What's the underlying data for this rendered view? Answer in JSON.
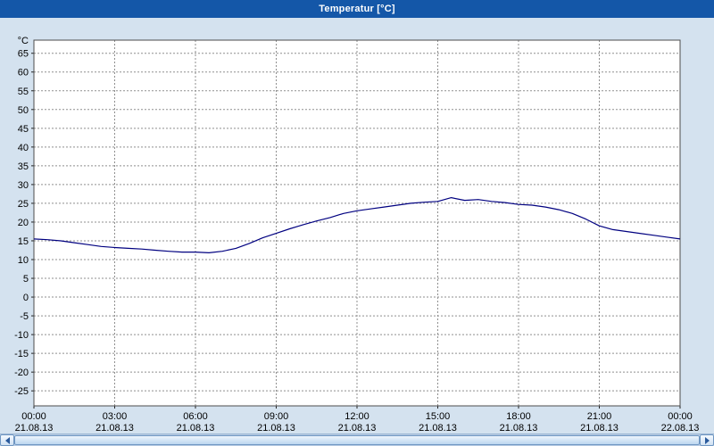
{
  "window": {
    "title": "Temperatur [°C]",
    "colors": {
      "title_bar": "#1457a8",
      "title_text": "#ffffff",
      "background": "#d4e2ef",
      "plot_bg": "#ffffff",
      "plot_border": "#4c4c4c",
      "grid": "#8f8f8f",
      "axis_text": "#000000",
      "line": "#000080"
    }
  },
  "scrollbar": {
    "left_arrow_icon": "◄",
    "right_arrow_icon": "►"
  },
  "chart_data": {
    "type": "line",
    "title": "Temperatur [°C]",
    "xlabel": "",
    "ylabel": "°C",
    "ylim": [
      -29,
      68.5
    ],
    "yticks": [
      65,
      60,
      55,
      50,
      45,
      40,
      35,
      30,
      25,
      20,
      15,
      10,
      5,
      0,
      -5,
      -10,
      -15,
      -20,
      -25
    ],
    "xlim_hours": [
      0,
      24
    ],
    "grid": true,
    "legend": "none",
    "xticks": [
      {
        "hour": 0,
        "time": "00:00",
        "date": "21.08.13"
      },
      {
        "hour": 3,
        "time": "03:00",
        "date": "21.08.13"
      },
      {
        "hour": 6,
        "time": "06:00",
        "date": "21.08.13"
      },
      {
        "hour": 9,
        "time": "09:00",
        "date": "21.08.13"
      },
      {
        "hour": 12,
        "time": "12:00",
        "date": "21.08.13"
      },
      {
        "hour": 15,
        "time": "15:00",
        "date": "21.08.13"
      },
      {
        "hour": 18,
        "time": "18:00",
        "date": "21.08.13"
      },
      {
        "hour": 21,
        "time": "21:00",
        "date": "21.08.13"
      },
      {
        "hour": 24,
        "time": "00:00",
        "date": "22.08.13"
      }
    ],
    "series": [
      {
        "name": "Temperatur",
        "color": "#000080",
        "x_hours": [
          0,
          0.5,
          1,
          1.5,
          2,
          2.5,
          3,
          3.5,
          4,
          4.5,
          5,
          5.5,
          6,
          6.5,
          7,
          7.5,
          8,
          8.5,
          9,
          9.5,
          10,
          10.5,
          11,
          11.5,
          12,
          12.5,
          13,
          13.5,
          14,
          14.5,
          15,
          15.5,
          16,
          16.5,
          17,
          17.5,
          18,
          18.5,
          19,
          19.5,
          20,
          20.5,
          21,
          21.5,
          22,
          22.5,
          23,
          23.5,
          24
        ],
        "values": [
          15.5,
          15.3,
          15.0,
          14.5,
          14.0,
          13.5,
          13.2,
          13.0,
          12.8,
          12.5,
          12.2,
          12.0,
          12.0,
          11.8,
          12.2,
          13.0,
          14.3,
          15.8,
          17.0,
          18.2,
          19.3,
          20.3,
          21.2,
          22.3,
          23.0,
          23.5,
          24.0,
          24.5,
          25.0,
          25.3,
          25.5,
          26.5,
          25.8,
          26.0,
          25.5,
          25.2,
          24.7,
          24.5,
          24.0,
          23.3,
          22.3,
          20.8,
          19.0,
          18.0,
          17.5,
          17.0,
          16.5,
          16.0,
          15.5
        ]
      }
    ]
  }
}
